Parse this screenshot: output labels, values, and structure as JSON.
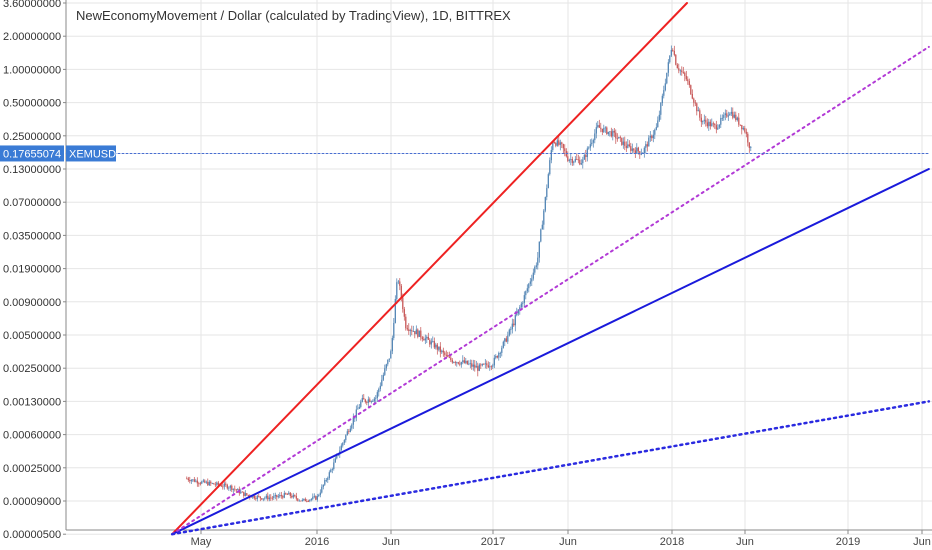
{
  "title": "NewEconomyMovement / Dollar (calculated by TradingView), 1D, BITTREX",
  "price_label": {
    "value": "0.17655074",
    "symbol": "XEMUSD",
    "color": "#3a7bd5"
  },
  "colors": {
    "up_candle": "#4a7fb0",
    "down_candle": "#c44d4d",
    "red_line": "#ee2222",
    "blue_line": "#1a1adb",
    "purple_dotted": "#b23ad6",
    "blue_dotted": "#2a2ae0",
    "price_line": "#4a6fd0",
    "grid": "#e6e6e6"
  },
  "chart_data": {
    "type": "line",
    "y_scale": "log",
    "y_ticks": [
      "3.60000000",
      "2.00000000",
      "1.00000000",
      "0.50000000",
      "0.25000000",
      "0.13000000",
      "0.07000000",
      "0.03500000",
      "0.01900000",
      "0.00900000",
      "0.00500000",
      "0.00250000",
      "0.00130000",
      "0.00060000",
      "0.00025000",
      "0.00009000",
      "0.00000500"
    ],
    "x_ticks": [
      "May",
      "2016",
      "Jun",
      "2017",
      "Jun",
      "2018",
      "Jun",
      "2019",
      "Jun"
    ],
    "ylim": [
      5e-06,
      3.6
    ],
    "series": [
      {
        "style": "candles",
        "x": [
          "2015-04-01",
          "2015-05-01",
          "2015-06-01",
          "2015-07-01",
          "2015-08-01",
          "2015-09-01",
          "2015-10-01",
          "2015-11-01",
          "2015-12-01",
          "2016-01-01",
          "2016-02-01",
          "2016-03-01",
          "2016-04-01",
          "2016-05-01",
          "2016-06-01",
          "2016-06-15",
          "2016-07-01",
          "2016-08-01",
          "2016-09-01",
          "2016-10-01",
          "2016-11-01",
          "2016-12-01",
          "2017-01-01",
          "2017-02-01",
          "2017-03-01",
          "2017-04-01",
          "2017-05-01",
          "2017-05-20",
          "2017-06-01",
          "2017-07-01",
          "2017-08-01",
          "2017-09-01",
          "2017-10-01",
          "2017-11-01",
          "2017-12-01",
          "2018-01-01",
          "2018-01-10",
          "2018-02-01",
          "2018-03-01",
          "2018-04-01",
          "2018-05-01",
          "2018-06-01",
          "2018-06-15"
        ],
        "values": [
          0.00018,
          0.00016,
          0.00015,
          0.00014,
          0.00011,
          0.0001,
          0.0001,
          0.00011,
          9e-05,
          0.0001,
          0.00025,
          0.0006,
          0.0013,
          0.0014,
          0.0035,
          0.016,
          0.006,
          0.005,
          0.004,
          0.003,
          0.0028,
          0.0025,
          0.0028,
          0.005,
          0.009,
          0.023,
          0.23,
          0.2,
          0.16,
          0.15,
          0.3,
          0.26,
          0.2,
          0.18,
          0.3,
          1.7,
          1.1,
          0.8,
          0.35,
          0.3,
          0.42,
          0.28,
          0.17655074
        ]
      },
      {
        "style": "trendline-red-solid",
        "x": [
          "2015-03-01",
          "2018-02-01"
        ],
        "values": [
          5e-06,
          3.6
        ]
      },
      {
        "style": "trendline-blue-solid",
        "x": [
          "2015-03-01",
          "2019-06-15"
        ],
        "values": [
          5e-06,
          0.13
        ]
      },
      {
        "style": "trendline-purple-dotted",
        "x": [
          "2015-03-01",
          "2019-06-15"
        ],
        "values": [
          5e-06,
          1.6
        ]
      },
      {
        "style": "trendline-blue-dotted",
        "x": [
          "2015-03-01",
          "2019-06-15"
        ],
        "values": [
          5e-06,
          0.0013
        ]
      },
      {
        "style": "horizontal-price-line",
        "x": [
          "2015-03-01",
          "2019-06-15"
        ],
        "values": [
          0.17655074,
          0.17655074
        ]
      }
    ],
    "grid": true
  }
}
